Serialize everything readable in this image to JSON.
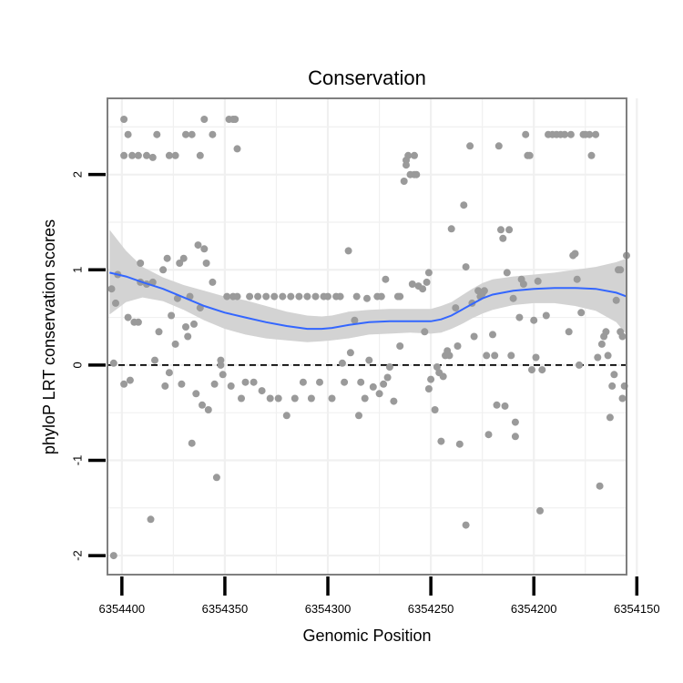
{
  "chart_data": {
    "type": "scatter",
    "title": "Conservation",
    "xlabel": "Genomic Position",
    "ylabel": "phyloP LRT conservation scores",
    "x_reversed": true,
    "xlim": [
      6354155,
      6354407
    ],
    "ylim": [
      -2.2,
      2.8
    ],
    "x_ticks": [
      6354400,
      6354350,
      6354300,
      6354250,
      6354200,
      6354150
    ],
    "x_tick_labels": [
      "6354400",
      "6354350",
      "6354300",
      "6354250",
      "6354200",
      "6354150"
    ],
    "y_ticks": [
      -2,
      -1,
      0,
      1,
      2
    ],
    "y_tick_labels": [
      "-2",
      "-1",
      "0",
      "1",
      "2"
    ],
    "grid": true,
    "reference_line": {
      "y": 0,
      "style": "dashed"
    },
    "colors": {
      "points": "#9a9a9a",
      "smooth": "#3366ff",
      "band": "#d3d3d3",
      "border": "#7f7f7f",
      "grid": "#f0f0f0"
    },
    "series": [
      {
        "name": "points",
        "points": [
          [
            6354404,
            -2.0
          ],
          [
            6354404,
            0.02
          ],
          [
            6354405,
            0.8
          ],
          [
            6354403,
            0.65
          ],
          [
            6354402,
            0.95
          ],
          [
            6354399,
            2.58
          ],
          [
            6354399,
            2.2
          ],
          [
            6354397,
            2.42
          ],
          [
            6354395,
            2.2
          ],
          [
            6354392,
            2.2
          ],
          [
            6354388,
            2.2
          ],
          [
            6354385,
            2.18
          ],
          [
            6354383,
            2.42
          ],
          [
            6354377,
            2.2
          ],
          [
            6354374,
            2.2
          ],
          [
            6354369,
            2.42
          ],
          [
            6354366,
            2.42
          ],
          [
            6354362,
            2.2
          ],
          [
            6354360,
            2.58
          ],
          [
            6354356,
            2.42
          ],
          [
            6354348,
            2.58
          ],
          [
            6354346,
            2.58
          ],
          [
            6354345,
            2.58
          ],
          [
            6354344,
            2.27
          ],
          [
            6354399,
            -0.2
          ],
          [
            6354396,
            -0.16
          ],
          [
            6354397,
            0.5
          ],
          [
            6354394,
            0.45
          ],
          [
            6354392,
            0.45
          ],
          [
            6354391,
            0.87
          ],
          [
            6354391,
            1.07
          ],
          [
            6354388,
            0.85
          ],
          [
            6354386,
            -1.62
          ],
          [
            6354385,
            0.87
          ],
          [
            6354384,
            0.05
          ],
          [
            6354382,
            0.35
          ],
          [
            6354380,
            1.0
          ],
          [
            6354379,
            -0.22
          ],
          [
            6354378,
            1.12
          ],
          [
            6354377,
            -0.08
          ],
          [
            6354376,
            0.52
          ],
          [
            6354374,
            0.22
          ],
          [
            6354373,
            0.7
          ],
          [
            6354372,
            1.07
          ],
          [
            6354371,
            -0.2
          ],
          [
            6354370,
            1.12
          ],
          [
            6354369,
            0.4
          ],
          [
            6354368,
            0.3
          ],
          [
            6354367,
            0.72
          ],
          [
            6354366,
            -0.82
          ],
          [
            6354365,
            0.43
          ],
          [
            6354364,
            -0.3
          ],
          [
            6354363,
            1.26
          ],
          [
            6354362,
            0.6
          ],
          [
            6354361,
            -0.42
          ],
          [
            6354360,
            1.22
          ],
          [
            6354359,
            1.07
          ],
          [
            6354358,
            -0.47
          ],
          [
            6354356,
            0.87
          ],
          [
            6354354,
            -1.18
          ],
          [
            6354355,
            -0.2
          ],
          [
            6354352,
            0.0
          ],
          [
            6354352,
            0.05
          ],
          [
            6354351,
            -0.1
          ],
          [
            6354349,
            0.72
          ],
          [
            6354347,
            -0.22
          ],
          [
            6354346,
            0.72
          ],
          [
            6354344,
            0.72
          ],
          [
            6354342,
            -0.35
          ],
          [
            6354340,
            -0.18
          ],
          [
            6354338,
            0.72
          ],
          [
            6354336,
            -0.18
          ],
          [
            6354334,
            0.72
          ],
          [
            6354332,
            -0.27
          ],
          [
            6354330,
            0.72
          ],
          [
            6354328,
            -0.35
          ],
          [
            6354326,
            0.72
          ],
          [
            6354324,
            -0.35
          ],
          [
            6354322,
            0.72
          ],
          [
            6354320,
            -0.53
          ],
          [
            6354318,
            0.72
          ],
          [
            6354316,
            -0.35
          ],
          [
            6354314,
            0.72
          ],
          [
            6354312,
            -0.18
          ],
          [
            6354310,
            0.72
          ],
          [
            6354308,
            -0.35
          ],
          [
            6354306,
            0.72
          ],
          [
            6354304,
            -0.18
          ],
          [
            6354302,
            0.72
          ],
          [
            6354300,
            0.72
          ],
          [
            6354298,
            -0.35
          ],
          [
            6354296,
            0.72
          ],
          [
            6354294,
            0.72
          ],
          [
            6354293,
            0.02
          ],
          [
            6354292,
            -0.18
          ],
          [
            6354290,
            1.2
          ],
          [
            6354289,
            0.13
          ],
          [
            6354287,
            0.47
          ],
          [
            6354286,
            0.72
          ],
          [
            6354285,
            -0.53
          ],
          [
            6354284,
            -0.18
          ],
          [
            6354282,
            -0.35
          ],
          [
            6354281,
            0.7
          ],
          [
            6354280,
            0.05
          ],
          [
            6354278,
            -0.23
          ],
          [
            6354276,
            0.72
          ],
          [
            6354275,
            -0.3
          ],
          [
            6354274,
            0.72
          ],
          [
            6354273,
            -0.2
          ],
          [
            6354272,
            0.9
          ],
          [
            6354271,
            -0.13
          ],
          [
            6354270,
            -0.02
          ],
          [
            6354268,
            -0.38
          ],
          [
            6354266,
            0.72
          ],
          [
            6354265,
            0.2
          ],
          [
            6354265,
            0.72
          ],
          [
            6354263,
            1.93
          ],
          [
            6354262,
            2.1
          ],
          [
            6354262,
            2.15
          ],
          [
            6354261,
            2.2
          ],
          [
            6354260,
            2.0
          ],
          [
            6354259,
            0.85
          ],
          [
            6354258,
            2.2
          ],
          [
            6354258,
            2.0
          ],
          [
            6354257,
            2.0
          ],
          [
            6354256,
            0.83
          ],
          [
            6354254,
            0.8
          ],
          [
            6354253,
            0.35
          ],
          [
            6354252,
            0.87
          ],
          [
            6354251,
            0.97
          ],
          [
            6354251,
            -0.25
          ],
          [
            6354250,
            -0.15
          ],
          [
            6354248,
            -0.47
          ],
          [
            6354247,
            -0.02
          ],
          [
            6354246,
            -0.08
          ],
          [
            6354245,
            -0.8
          ],
          [
            6354244,
            -0.12
          ],
          [
            6354243,
            0.1
          ],
          [
            6354242,
            0.15
          ],
          [
            6354241,
            0.1
          ],
          [
            6354240,
            1.43
          ],
          [
            6354238,
            0.6
          ],
          [
            6354237,
            0.2
          ],
          [
            6354236,
            -0.83
          ],
          [
            6354234,
            1.68
          ],
          [
            6354233,
            -1.68
          ],
          [
            6354233,
            1.03
          ],
          [
            6354231,
            2.3
          ],
          [
            6354230,
            0.65
          ],
          [
            6354229,
            0.3
          ],
          [
            6354227,
            0.78
          ],
          [
            6354226,
            0.72
          ],
          [
            6354225,
            0.75
          ],
          [
            6354224,
            0.78
          ],
          [
            6354223,
            0.1
          ],
          [
            6354222,
            -0.73
          ],
          [
            6354220,
            0.32
          ],
          [
            6354219,
            0.1
          ],
          [
            6354218,
            -0.42
          ],
          [
            6354217,
            2.3
          ],
          [
            6354216,
            1.42
          ],
          [
            6354215,
            1.33
          ],
          [
            6354214,
            -0.43
          ],
          [
            6354213,
            0.97
          ],
          [
            6354212,
            1.42
          ],
          [
            6354211,
            0.1
          ],
          [
            6354210,
            0.7
          ],
          [
            6354209,
            -0.6
          ],
          [
            6354209,
            -0.75
          ],
          [
            6354207,
            0.5
          ],
          [
            6354206,
            0.9
          ],
          [
            6354205,
            0.85
          ],
          [
            6354204,
            2.42
          ],
          [
            6354203,
            2.2
          ],
          [
            6354202,
            2.2
          ],
          [
            6354201,
            -0.05
          ],
          [
            6354200,
            0.47
          ],
          [
            6354199,
            0.08
          ],
          [
            6354198,
            0.88
          ],
          [
            6354197,
            -1.53
          ],
          [
            6354196,
            -0.05
          ],
          [
            6354194,
            0.52
          ],
          [
            6354193,
            2.42
          ],
          [
            6354191,
            2.42
          ],
          [
            6354189,
            2.42
          ],
          [
            6354187,
            2.42
          ],
          [
            6354185,
            2.42
          ],
          [
            6354183,
            0.35
          ],
          [
            6354182,
            2.42
          ],
          [
            6354181,
            1.15
          ],
          [
            6354180,
            1.17
          ],
          [
            6354179,
            0.9
          ],
          [
            6354178,
            0.0
          ],
          [
            6354177,
            0.55
          ],
          [
            6354176,
            2.42
          ],
          [
            6354175,
            2.42
          ],
          [
            6354173,
            2.42
          ],
          [
            6354172,
            2.2
          ],
          [
            6354170,
            2.42
          ],
          [
            6354169,
            0.08
          ],
          [
            6354168,
            -1.27
          ],
          [
            6354167,
            0.22
          ],
          [
            6354166,
            0.3
          ],
          [
            6354165,
            0.35
          ],
          [
            6354164,
            0.1
          ],
          [
            6354163,
            -0.55
          ],
          [
            6354162,
            -0.22
          ],
          [
            6354160,
            0.68
          ],
          [
            6354159,
            1.0
          ],
          [
            6354158,
            0.35
          ],
          [
            6354157,
            0.3
          ],
          [
            6354157,
            -0.35
          ],
          [
            6354156,
            -0.22
          ],
          [
            6354155,
            1.15
          ],
          [
            6354158,
            1.0
          ],
          [
            6354161,
            -0.1
          ]
        ]
      },
      {
        "name": "smooth",
        "type": "line",
        "x": [
          6354406,
          6354398,
          6354390,
          6354380,
          6354370,
          6354360,
          6354350,
          6354340,
          6354330,
          6354320,
          6354310,
          6354303,
          6354298,
          6354290,
          6354280,
          6354270,
          6354260,
          6354250,
          6354245,
          6354240,
          6354235,
          6354230,
          6354225,
          6354220,
          6354210,
          6354200,
          6354190,
          6354180,
          6354170,
          6354160,
          6354155
        ],
        "y": [
          0.97,
          0.93,
          0.87,
          0.8,
          0.71,
          0.62,
          0.55,
          0.5,
          0.45,
          0.41,
          0.38,
          0.38,
          0.39,
          0.42,
          0.45,
          0.46,
          0.46,
          0.46,
          0.48,
          0.52,
          0.58,
          0.64,
          0.7,
          0.74,
          0.78,
          0.8,
          0.81,
          0.81,
          0.8,
          0.76,
          0.72
        ]
      },
      {
        "name": "confidence band",
        "type": "area",
        "x": [
          6354406,
          6354398,
          6354390,
          6354380,
          6354370,
          6354360,
          6354350,
          6354340,
          6354330,
          6354320,
          6354310,
          6354303,
          6354298,
          6354290,
          6354280,
          6354270,
          6354260,
          6354250,
          6354245,
          6354240,
          6354235,
          6354230,
          6354225,
          6354220,
          6354210,
          6354200,
          6354190,
          6354180,
          6354170,
          6354160,
          6354155
        ],
        "upper": [
          1.42,
          1.2,
          1.03,
          0.92,
          0.84,
          0.78,
          0.72,
          0.68,
          0.62,
          0.56,
          0.52,
          0.51,
          0.52,
          0.56,
          0.58,
          0.59,
          0.59,
          0.59,
          0.62,
          0.66,
          0.73,
          0.8,
          0.86,
          0.9,
          0.93,
          0.95,
          0.97,
          1.0,
          1.03,
          1.08,
          1.12
        ],
        "lower": [
          0.53,
          0.66,
          0.71,
          0.67,
          0.58,
          0.47,
          0.38,
          0.32,
          0.28,
          0.26,
          0.24,
          0.25,
          0.26,
          0.28,
          0.32,
          0.33,
          0.34,
          0.33,
          0.34,
          0.38,
          0.43,
          0.49,
          0.54,
          0.58,
          0.63,
          0.65,
          0.65,
          0.62,
          0.57,
          0.45,
          0.32
        ]
      }
    ]
  }
}
